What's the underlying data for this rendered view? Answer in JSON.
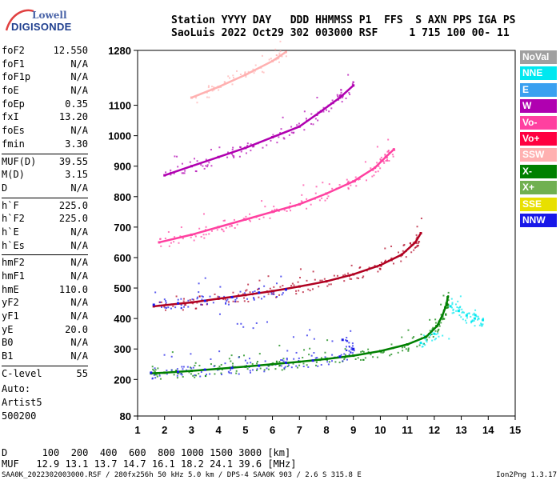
{
  "logo": {
    "line1": "Lowell",
    "line2": "DIGISONDE"
  },
  "header": {
    "line1": "Station YYYY DAY   DDD HHMMSS P1  FFS  S AXN PPS IGA PS",
    "line2": "SaoLuis 2022 Oct29 302 003000 RSF     1 715 100 00- 11"
  },
  "params": [
    [
      {
        "k": "foF2",
        "v": "12.550"
      },
      {
        "k": "foF1",
        "v": "N/A"
      },
      {
        "k": "foF1p",
        "v": "N/A"
      },
      {
        "k": "foE",
        "v": "N/A"
      },
      {
        "k": "foEp",
        "v": "0.35"
      },
      {
        "k": "fxI",
        "v": "13.20"
      },
      {
        "k": "foEs",
        "v": "N/A"
      },
      {
        "k": "fmin",
        "v": "3.30"
      }
    ],
    [
      {
        "k": "MUF(D)",
        "v": "39.55"
      },
      {
        "k": "M(D)",
        "v": "3.15"
      },
      {
        "k": "D",
        "v": "N/A"
      }
    ],
    [
      {
        "k": "h`F",
        "v": "225.0"
      },
      {
        "k": "h`F2",
        "v": "225.0"
      },
      {
        "k": "h`E",
        "v": "N/A"
      },
      {
        "k": "h`Es",
        "v": "N/A"
      }
    ],
    [
      {
        "k": "hmF2",
        "v": "N/A"
      },
      {
        "k": "hmF1",
        "v": "N/A"
      },
      {
        "k": "hmE",
        "v": "110.0"
      },
      {
        "k": "yF2",
        "v": "N/A"
      },
      {
        "k": "yF1",
        "v": "N/A"
      },
      {
        "k": "yE",
        "v": "20.0"
      },
      {
        "k": "B0",
        "v": "N/A"
      },
      {
        "k": "B1",
        "v": "N/A"
      }
    ],
    [
      {
        "k": "C-level",
        "v": "55"
      }
    ]
  ],
  "auto": {
    "line1": "Auto:",
    "line2": "Artist5",
    "line3": "500200"
  },
  "legend": [
    {
      "label": "NoVal",
      "color": "#a0a0a0"
    },
    {
      "label": "NNE",
      "color": "#00e8f0"
    },
    {
      "label": "E",
      "color": "#3aa0f0"
    },
    {
      "label": "W",
      "color": "#b000b0"
    },
    {
      "label": "Vo-",
      "color": "#ff40a0"
    },
    {
      "label": "Vo+",
      "color": "#ff0040"
    },
    {
      "label": "SSW",
      "color": "#ffb0b0"
    },
    {
      "label": "X-",
      "color": "#008000"
    },
    {
      "label": "X+",
      "color": "#70b050"
    },
    {
      "label": "SSE",
      "color": "#e8e000"
    },
    {
      "label": "NNW",
      "color": "#1818e8"
    }
  ],
  "footer": {
    "line1": "D      100  200  400  600  800 1000 1500 3000 [km]",
    "line2": "MUF   12.9 13.1 13.7 14.7 16.1 18.2 24.1 39.6 [MHz]",
    "line3": "SAA0K_2022302003000.RSF / 280fx256h 50 kHz 5.0 km / DPS-4 SAA0K 903 / 2.6 S 315.8 E",
    "version": "Ion2Png 1.3.17"
  },
  "chart_data": {
    "type": "scatter",
    "xlabel": "",
    "ylabel": "",
    "xlim": [
      1,
      15
    ],
    "ylim": [
      80,
      1280
    ],
    "x_ticks": [
      1,
      2,
      3,
      4,
      5,
      6,
      7,
      8,
      9,
      10,
      11,
      12,
      13,
      14,
      15
    ],
    "y_ticks": [
      80,
      200,
      300,
      400,
      500,
      600,
      700,
      800,
      900,
      1000,
      1100,
      1280
    ],
    "series": [
      {
        "name": "X-",
        "color": "#008000",
        "points": [
          [
            1.5,
            220
          ],
          [
            2.0,
            222
          ],
          [
            3.0,
            228
          ],
          [
            4.0,
            235
          ],
          [
            5.0,
            242
          ],
          [
            6.0,
            250
          ],
          [
            7.0,
            258
          ],
          [
            8.0,
            267
          ],
          [
            9.0,
            278
          ],
          [
            10.0,
            293
          ],
          [
            11.0,
            315
          ],
          [
            11.7,
            340
          ],
          [
            12.1,
            375
          ],
          [
            12.3,
            410
          ],
          [
            12.45,
            445
          ],
          [
            12.5,
            470
          ]
        ]
      },
      {
        "name": "Vo+",
        "color": "#b00020",
        "points": [
          [
            1.6,
            440
          ],
          [
            3.0,
            453
          ],
          [
            4.0,
            465
          ],
          [
            5.0,
            477
          ],
          [
            6.0,
            490
          ],
          [
            7.0,
            505
          ],
          [
            8.0,
            522
          ],
          [
            9.0,
            545
          ],
          [
            10.0,
            575
          ],
          [
            10.8,
            610
          ],
          [
            11.3,
            650
          ],
          [
            11.5,
            680
          ]
        ]
      },
      {
        "name": "Vo-",
        "color": "#ff40a0",
        "points": [
          [
            1.8,
            650
          ],
          [
            3.0,
            675
          ],
          [
            4.0,
            700
          ],
          [
            5.0,
            725
          ],
          [
            6.0,
            750
          ],
          [
            7.0,
            775
          ],
          [
            8.0,
            810
          ],
          [
            9.0,
            850
          ],
          [
            9.8,
            895
          ],
          [
            10.2,
            930
          ],
          [
            10.5,
            955
          ]
        ]
      },
      {
        "name": "W",
        "color": "#b000b0",
        "points": [
          [
            2.0,
            870
          ],
          [
            3.0,
            900
          ],
          [
            4.0,
            930
          ],
          [
            5.0,
            960
          ],
          [
            6.0,
            995
          ],
          [
            7.0,
            1030
          ],
          [
            7.8,
            1080
          ],
          [
            8.5,
            1125
          ],
          [
            9.0,
            1165
          ]
        ]
      },
      {
        "name": "SSW",
        "color": "#ffb0b0",
        "points": [
          [
            3.0,
            1125
          ],
          [
            4.0,
            1160
          ],
          [
            5.0,
            1200
          ],
          [
            6.0,
            1245
          ],
          [
            6.5,
            1275
          ]
        ]
      },
      {
        "name": "NNW",
        "color": "#1818e8",
        "points": [
          [
            1.5,
            222
          ],
          [
            2.5,
            225
          ],
          [
            3.5,
            232
          ],
          [
            4.5,
            238
          ],
          [
            5.5,
            245
          ],
          [
            6.5,
            255
          ],
          [
            7.5,
            262
          ],
          [
            8.5,
            275
          ],
          [
            9.0,
            300
          ],
          [
            8.6,
            330
          ],
          [
            1.6,
            445
          ],
          [
            2.5,
            450
          ],
          [
            3.5,
            458
          ],
          [
            4.5,
            470
          ],
          [
            5.5,
            485
          ],
          [
            6.5,
            495
          ]
        ]
      },
      {
        "name": "NNE",
        "color": "#00e8f0",
        "points": [
          [
            12.6,
            440
          ],
          [
            12.9,
            425
          ],
          [
            13.2,
            410
          ],
          [
            13.5,
            400
          ],
          [
            13.8,
            395
          ],
          [
            11.5,
            320
          ],
          [
            12.0,
            350
          ]
        ]
      }
    ]
  }
}
